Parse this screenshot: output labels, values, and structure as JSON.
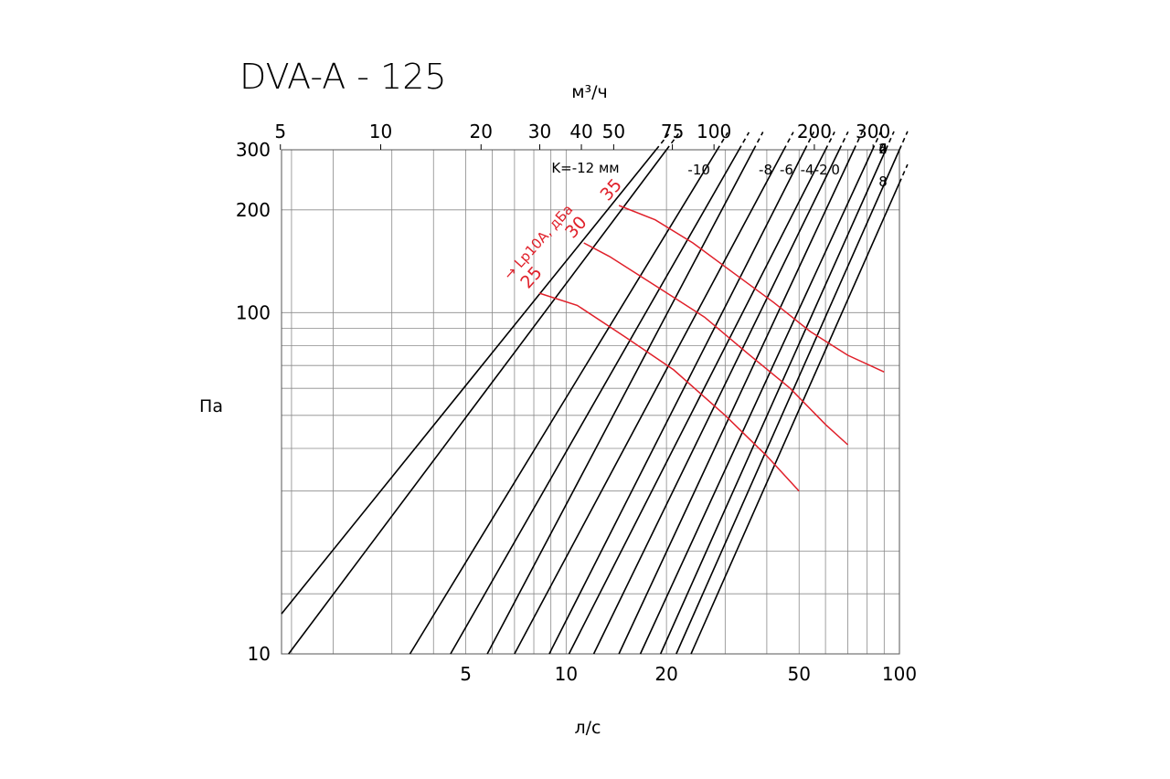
{
  "chart_data": {
    "type": "line",
    "title": "DVA-A - 125",
    "xlabel": "л/с",
    "x2label": "м³/ч",
    "ylabel": "Па",
    "scale": "log-log",
    "xlim": [
      1.4,
      100
    ],
    "ylim": [
      10,
      300
    ],
    "x_ticks": [
      5,
      10,
      20,
      50,
      100
    ],
    "x_tick_labels": [
      "5",
      "10",
      "20",
      "50",
      "100"
    ],
    "x2_ticks": [
      5,
      10,
      20,
      30,
      40,
      50,
      75,
      100,
      200,
      300
    ],
    "x2_tick_labels": [
      "5",
      "10",
      "20",
      "30",
      "40",
      "50",
      "75",
      "100",
      "200",
      "300"
    ],
    "y_ticks": [
      10,
      100,
      200,
      300
    ],
    "y_tick_labels": [
      "10",
      "100",
      "200",
      "300"
    ],
    "grid": true,
    "grid_x": [
      1.5,
      2,
      3,
      4,
      5,
      6,
      7,
      8,
      9,
      10,
      20,
      30,
      40,
      50,
      60,
      70,
      80,
      90,
      100
    ],
    "grid_y": [
      10,
      15,
      20,
      30,
      40,
      50,
      60,
      70,
      80,
      90,
      100,
      200,
      300
    ],
    "damper_curve_note": "pressure proportional to square of flow",
    "damper_curves": [
      {
        "label": "K=-12 мм",
        "x": [
          1.4,
          18.6
        ],
        "y": [
          13.1,
          300
        ]
      },
      {
        "label": "",
        "x": [
          1.47,
          20
        ],
        "y": [
          10,
          300
        ]
      },
      {
        "label": "-10",
        "x": [
          3.4,
          28.4
        ],
        "y": [
          10,
          300
        ]
      },
      {
        "label": "",
        "x": [
          4.5,
          33
        ],
        "y": [
          10,
          300
        ]
      },
      {
        "label": "",
        "x": [
          5.8,
          36.5
        ],
        "y": [
          10,
          300
        ]
      },
      {
        "label": "-8",
        "x": [
          7.0,
          45
        ],
        "y": [
          10,
          300
        ]
      },
      {
        "label": "-6",
        "x": [
          8.9,
          52
        ],
        "y": [
          10,
          300
        ]
      },
      {
        "label": "-4",
        "x": [
          10.2,
          60
        ],
        "y": [
          10,
          300
        ]
      },
      {
        "label": "-2",
        "x": [
          12.1,
          66
        ],
        "y": [
          10,
          300
        ]
      },
      {
        "label": "0",
        "x": [
          14.4,
          73
        ],
        "y": [
          10,
          300
        ]
      },
      {
        "label": "2",
        "x": [
          16.7,
          83
        ],
        "y": [
          10,
          300
        ]
      },
      {
        "label": "4",
        "x": [
          19.2,
          91
        ],
        "y": [
          10,
          300
        ]
      },
      {
        "label": "6",
        "x": [
          21.4,
          100
        ],
        "y": [
          10,
          300
        ]
      },
      {
        "label": "8",
        "x": [
          23.7,
          100
        ],
        "y": [
          10,
          240
        ]
      }
    ],
    "series_label": "→ Lp10A, дБа",
    "series": [
      {
        "name": "25",
        "x": [
          8.3,
          10.8,
          15,
          21,
          30,
          40,
          50
        ],
        "y": [
          114,
          105,
          85,
          68,
          50,
          38,
          30
        ]
      },
      {
        "name": "30",
        "x": [
          11.3,
          13.5,
          19,
          26,
          35,
          47,
          60,
          70
        ],
        "y": [
          160,
          146,
          118,
          97,
          76,
          60,
          47,
          41
        ]
      },
      {
        "name": "35",
        "x": [
          14.4,
          18.5,
          24,
          32,
          42,
          54,
          70,
          90
        ],
        "y": [
          206,
          187,
          160,
          130,
          107,
          88,
          75,
          67
        ]
      }
    ],
    "colors": {
      "series": "#e0202a",
      "damper": "#000000",
      "grid": "#8a8a8a"
    }
  }
}
